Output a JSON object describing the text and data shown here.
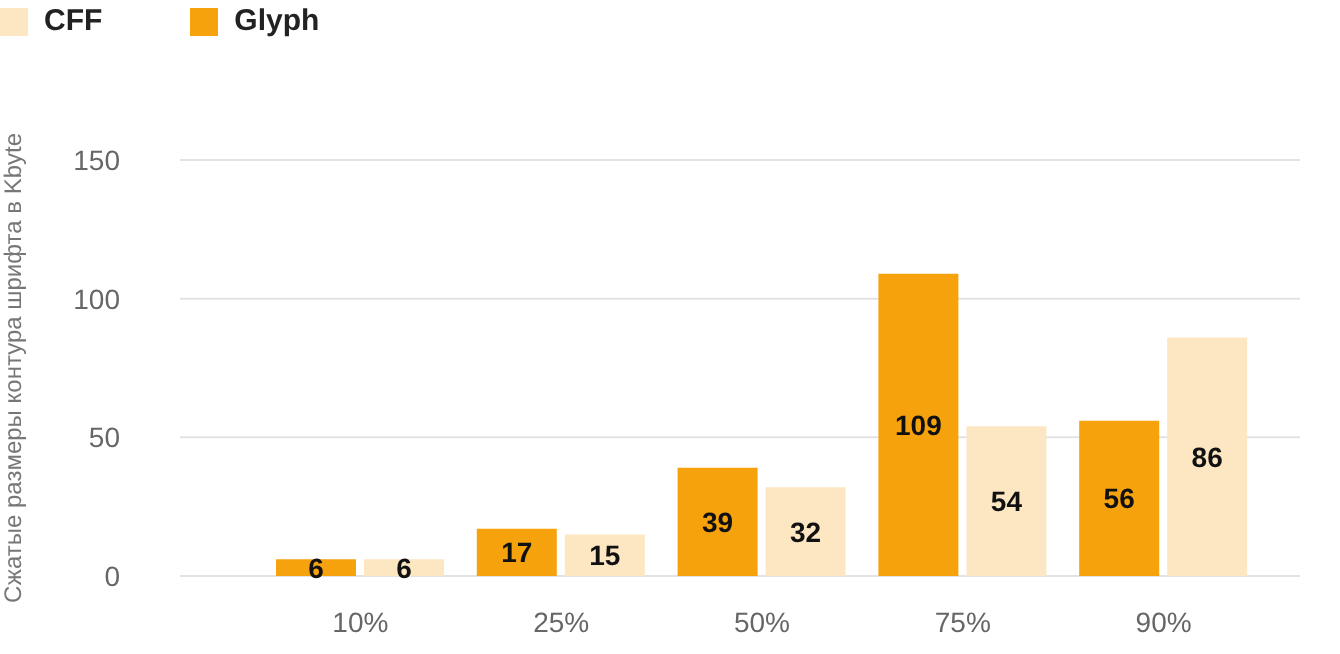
{
  "chart_data": {
    "type": "bar",
    "ylabel": "Сжатые размеры контура шрифта в Kbyte",
    "categories": [
      "10%",
      "25%",
      "50%",
      "75%",
      "90%"
    ],
    "series": [
      {
        "name": "Glyph",
        "color": "#f5a20c",
        "values": [
          6,
          17,
          39,
          109,
          56
        ]
      },
      {
        "name": "CFF",
        "color": "#fde6c2",
        "values": [
          6,
          15,
          32,
          54,
          86
        ]
      }
    ],
    "ylim": [
      0,
      150
    ],
    "yticks": [
      0,
      50,
      100,
      150
    ],
    "grid": "y",
    "legend": "top left",
    "data_labels": true
  }
}
